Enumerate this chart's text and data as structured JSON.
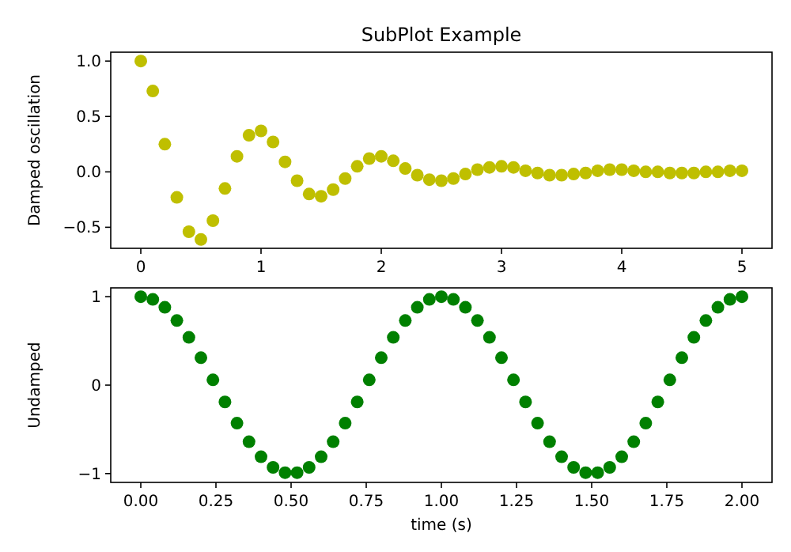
{
  "chart_data": [
    {
      "type": "scatter",
      "title": "SubPlot Example",
      "ylabel": "Damped oscillation",
      "marker": "circle",
      "x": [
        0,
        0.1,
        0.2,
        0.3,
        0.4,
        0.5,
        0.6,
        0.7,
        0.8,
        0.9,
        1,
        1.1,
        1.2,
        1.3,
        1.4,
        1.5,
        1.6,
        1.7,
        1.8,
        1.9,
        2,
        2.1,
        2.2,
        2.3,
        2.4,
        2.5,
        2.6,
        2.7,
        2.8,
        2.9,
        3,
        3.1,
        3.2,
        3.3,
        3.4,
        3.5,
        3.6,
        3.7,
        3.8,
        3.9,
        4,
        4.1,
        4.2,
        4.3,
        4.4,
        4.5,
        4.6,
        4.7,
        4.8,
        4.9,
        5
      ],
      "series": [
        {
          "color": "#bfbf00",
          "values": [
            1,
            0.73,
            0.25,
            -0.23,
            -0.54,
            -0.61,
            -0.44,
            -0.15,
            0.14,
            0.33,
            0.37,
            0.27,
            0.09,
            -0.08,
            -0.2,
            -0.22,
            -0.16,
            -0.06,
            0.05,
            0.12,
            0.14,
            0.1,
            0.03,
            -0.03,
            -0.07,
            -0.08,
            -0.06,
            -0.02,
            0.02,
            0.04,
            0.05,
            0.04,
            0.01,
            -0.01,
            -0.03,
            -0.03,
            -0.02,
            -0.01,
            0.01,
            0.02,
            0.02,
            0.01,
            0,
            0,
            -0.01,
            -0.01,
            -0.01,
            0,
            0,
            0.01,
            0.01
          ]
        }
      ],
      "xlim": [
        -0.25,
        5.25
      ],
      "ylim": [
        -0.69,
        1.08
      ],
      "xticks": [
        0,
        1,
        2,
        3,
        4,
        5
      ],
      "yticks": [
        {
          "value": -0.5,
          "label": "−0.5"
        },
        {
          "value": 0,
          "label": "0.0"
        },
        {
          "value": 0.5,
          "label": "0.5"
        },
        {
          "value": 1,
          "label": "1.0"
        }
      ]
    },
    {
      "type": "scatter",
      "xlabel": "time (s)",
      "ylabel": "Undamped",
      "marker": "circle",
      "x": [
        0,
        0.04,
        0.08,
        0.12,
        0.16,
        0.2,
        0.24,
        0.28,
        0.32,
        0.36,
        0.4,
        0.44,
        0.48,
        0.52,
        0.56,
        0.6,
        0.64,
        0.68,
        0.72,
        0.76,
        0.8,
        0.84,
        0.88,
        0.92,
        0.96,
        1,
        1.04,
        1.08,
        1.12,
        1.16,
        1.2,
        1.24,
        1.28,
        1.32,
        1.36,
        1.4,
        1.44,
        1.48,
        1.52,
        1.56,
        1.6,
        1.64,
        1.68,
        1.72,
        1.76,
        1.8,
        1.84,
        1.88,
        1.92,
        1.96,
        2
      ],
      "series": [
        {
          "color": "#008000",
          "values": [
            1,
            0.97,
            0.88,
            0.73,
            0.54,
            0.31,
            0.06,
            -0.19,
            -0.43,
            -0.64,
            -0.81,
            -0.93,
            -0.99,
            -0.99,
            -0.93,
            -0.81,
            -0.64,
            -0.43,
            -0.19,
            0.06,
            0.31,
            0.54,
            0.73,
            0.88,
            0.97,
            1,
            0.97,
            0.88,
            0.73,
            0.54,
            0.31,
            0.06,
            -0.19,
            -0.43,
            -0.64,
            -0.81,
            -0.93,
            -0.99,
            -0.99,
            -0.93,
            -0.81,
            -0.64,
            -0.43,
            -0.19,
            0.06,
            0.31,
            0.54,
            0.73,
            0.88,
            0.97,
            1
          ]
        }
      ],
      "xlim": [
        -0.1,
        2.1
      ],
      "ylim": [
        -1.1,
        1.1
      ],
      "xticks": [
        {
          "value": 0,
          "label": "0.00"
        },
        {
          "value": 0.25,
          "label": "0.25"
        },
        {
          "value": 0.5,
          "label": "0.50"
        },
        {
          "value": 0.75,
          "label": "0.75"
        },
        {
          "value": 1,
          "label": "1.00"
        },
        {
          "value": 1.25,
          "label": "1.25"
        },
        {
          "value": 1.5,
          "label": "1.50"
        },
        {
          "value": 1.75,
          "label": "1.75"
        },
        {
          "value": 2,
          "label": "2.00"
        }
      ],
      "yticks": [
        {
          "value": -1,
          "label": "−1"
        },
        {
          "value": 0,
          "label": "0"
        },
        {
          "value": 1,
          "label": "1"
        }
      ]
    }
  ]
}
